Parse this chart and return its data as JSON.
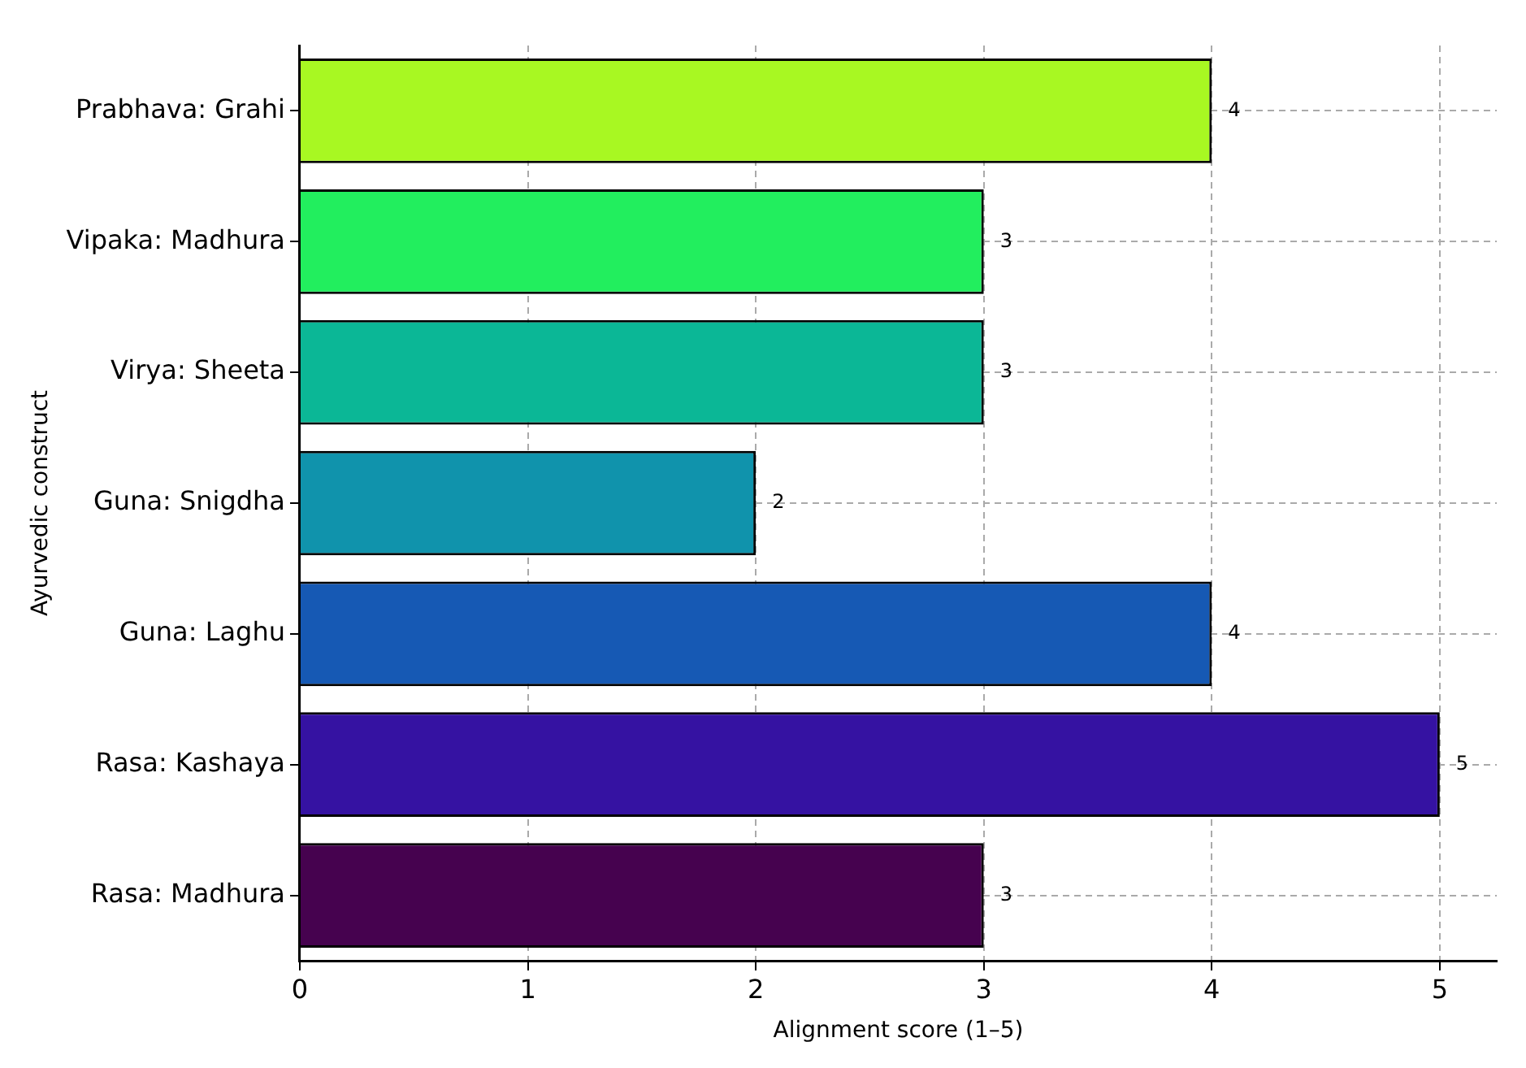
{
  "chart_data": {
    "type": "bar",
    "orientation": "horizontal",
    "xlabel": "Alignment score (1–5)",
    "ylabel": "Ayurvedic construct",
    "categories": [
      "Prabhava: Grahi",
      "Vipaka: Madhura",
      "Virya: Sheeta",
      "Guna: Snigdha",
      "Guna: Laghu",
      "Rasa: Kashaya",
      "Rasa: Madhura"
    ],
    "values": [
      4,
      3,
      3,
      2,
      4,
      5,
      3
    ],
    "colors": [
      "#a8f822",
      "#22ee5e",
      "#0bb796",
      "#1093ac",
      "#1659b4",
      "#3512a2",
      "#46024f"
    ],
    "xlim": [
      0,
      5.25
    ],
    "xticks": [
      0,
      1,
      2,
      3,
      4,
      5
    ],
    "grid": true,
    "data_labels": true,
    "legend": false
  }
}
